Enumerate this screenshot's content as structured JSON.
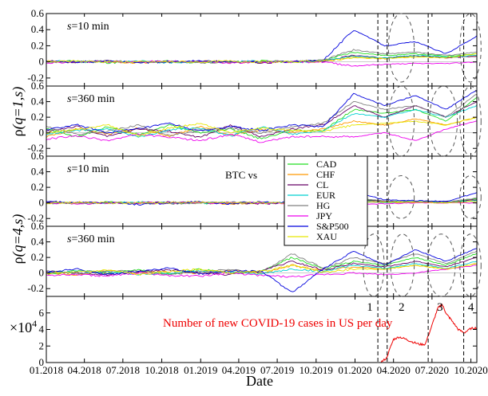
{
  "chart_data": {
    "type": "line",
    "x_axis": {
      "label": "Date",
      "range": [
        "2018-01-01",
        "2020-10-15"
      ],
      "tick_dates": [
        "2018-01-01",
        "2018-04-01",
        "2018-07-01",
        "2018-10-01",
        "2019-01-01",
        "2019-04-01",
        "2019-07-01",
        "2019-10-01",
        "2020-01-01",
        "2020-04-01",
        "2020-07-01",
        "2020-10-01"
      ],
      "tick_labels": [
        "01.2018",
        "04.2018",
        "07.2018",
        "10.2018",
        "01.2019",
        "04.2019",
        "07.2019",
        "10.2019",
        "01.2020",
        "04.2020",
        "07.2020",
        "10.2020"
      ]
    },
    "y_labels": {
      "q1": {
        "rho": "ρ",
        "args": "(q=1,s)"
      },
      "q4": {
        "rho": "ρ",
        "args": "(q=4,s)"
      },
      "covid_prefix": "×10"
    },
    "legend": {
      "title": "BTC vs",
      "position": "center",
      "entries": [
        {
          "label": "CAD",
          "color": "#22dd22"
        },
        {
          "label": "CHF",
          "color": "#ff9900"
        },
        {
          "label": "CL",
          "color": "#660066"
        },
        {
          "label": "EUR",
          "color": "#00d0d0"
        },
        {
          "label": "HG",
          "color": "#808080"
        },
        {
          "label": "JPY",
          "color": "#ee00ee"
        },
        {
          "label": "S&P500",
          "color": "#0000dd"
        },
        {
          "label": "XAU",
          "color": "#e6e600"
        }
      ]
    },
    "panels": [
      {
        "id": "q1-s10",
        "label_s": "s",
        "label_rest": "=10 min",
        "ylim": [
          -0.3,
          0.6
        ],
        "yticks": [
          -0.2,
          0,
          0.2,
          0.4,
          0.6
        ],
        "tick_labels": [
          "-0.2",
          "0",
          "0.2",
          "0.4",
          "0.6"
        ],
        "series_values": {
          "CAD": [
            0.0,
            0.01,
            -0.01,
            0.0,
            0.01,
            -0.01,
            0.0,
            0.01,
            0.0,
            0.02,
            0.12,
            0.08,
            0.1,
            0.07,
            0.1
          ],
          "CHF": [
            0.01,
            0.0,
            0.0,
            -0.01,
            0.0,
            0.01,
            -0.01,
            0.0,
            0.0,
            0.01,
            0.06,
            0.04,
            0.07,
            0.05,
            0.08
          ],
          "CL": [
            0.0,
            -0.01,
            0.01,
            0.0,
            0.0,
            0.0,
            0.01,
            -0.01,
            0.0,
            0.01,
            0.08,
            0.05,
            0.08,
            0.05,
            0.07
          ],
          "EUR": [
            0.01,
            0.0,
            0.0,
            0.01,
            -0.01,
            0.0,
            0.0,
            0.01,
            0.0,
            0.01,
            0.07,
            0.05,
            0.08,
            0.06,
            0.08
          ],
          "HG": [
            0.0,
            0.0,
            0.01,
            0.0,
            0.0,
            -0.01,
            0.0,
            0.0,
            0.01,
            0.02,
            0.15,
            0.1,
            0.12,
            0.08,
            0.12
          ],
          "JPY": [
            -0.01,
            0.0,
            0.0,
            0.0,
            0.01,
            0.0,
            -0.01,
            0.0,
            0.0,
            0.0,
            -0.05,
            -0.03,
            -0.02,
            -0.02,
            0.0
          ],
          "S&P500": [
            0.01,
            0.0,
            0.01,
            -0.01,
            0.0,
            0.01,
            0.0,
            0.0,
            0.0,
            0.02,
            0.4,
            0.2,
            0.25,
            0.1,
            0.32
          ],
          "XAU": [
            0.0,
            0.01,
            0.0,
            0.0,
            0.0,
            0.0,
            0.01,
            0.0,
            0.0,
            0.01,
            0.05,
            0.04,
            0.06,
            0.05,
            0.1
          ]
        }
      },
      {
        "id": "q1-s360",
        "label_s": "s",
        "label_rest": "=360 min",
        "ylim": [
          -0.3,
          0.6
        ],
        "yticks": [
          -0.2,
          0,
          0.2,
          0.4,
          0.6
        ],
        "tick_labels": [
          "-0.2",
          "0",
          "0.2",
          "0.4",
          "0.6"
        ],
        "series_values": {
          "CAD": [
            0.05,
            -0.05,
            0.08,
            -0.02,
            0.1,
            0.0,
            0.05,
            -0.08,
            0.03,
            0.02,
            0.3,
            0.25,
            0.3,
            0.15,
            0.45
          ],
          "CHF": [
            -0.05,
            0.05,
            -0.02,
            0.06,
            -0.05,
            0.08,
            -0.03,
            0.04,
            0.0,
            0.05,
            0.15,
            0.1,
            0.18,
            0.1,
            0.2
          ],
          "CL": [
            0.02,
            0.08,
            -0.05,
            0.05,
            0.02,
            -0.06,
            0.1,
            -0.05,
            0.05,
            0.1,
            0.35,
            0.2,
            0.35,
            0.2,
            0.4
          ],
          "EUR": [
            -0.02,
            0.03,
            0.05,
            -0.06,
            0.04,
            0.06,
            -0.04,
            0.08,
            -0.02,
            0.03,
            0.25,
            0.2,
            0.3,
            0.2,
            0.35
          ],
          "HG": [
            0.08,
            -0.02,
            0.02,
            0.1,
            -0.04,
            0.03,
            0.06,
            0.0,
            0.08,
            0.12,
            0.4,
            0.3,
            0.35,
            0.2,
            0.5
          ],
          "JPY": [
            -0.08,
            -0.04,
            -0.1,
            -0.02,
            -0.06,
            -0.1,
            -0.02,
            -0.12,
            -0.05,
            -0.05,
            -0.05,
            0.0,
            -0.1,
            0.05,
            0.15
          ],
          "S&P500": [
            0.04,
            0.1,
            0.0,
            0.05,
            0.12,
            0.02,
            0.08,
            0.03,
            0.1,
            0.08,
            0.5,
            0.35,
            0.48,
            0.3,
            0.55
          ],
          "XAU": [
            0.0,
            0.04,
            0.1,
            -0.04,
            0.06,
            0.12,
            0.0,
            0.06,
            0.03,
            0.02,
            0.1,
            0.12,
            0.15,
            0.1,
            0.2
          ]
        }
      },
      {
        "id": "q4-s10",
        "label_s": "s",
        "label_rest": "=10 min",
        "ylim": [
          -0.3,
          0.6
        ],
        "yticks": [
          -0.2,
          0,
          0.2,
          0.4,
          0.6
        ],
        "tick_labels": [
          "-0.2",
          "0",
          "0.2",
          "0.4",
          "0.6"
        ],
        "series_values": {
          "CAD": [
            0.0,
            0.0,
            0.01,
            0.0,
            0.0,
            -0.01,
            0.0,
            0.0,
            0.0,
            0.0,
            0.06,
            0.02,
            0.02,
            0.01,
            0.05
          ],
          "CHF": [
            0.0,
            0.01,
            0.0,
            0.0,
            0.0,
            0.0,
            -0.01,
            0.0,
            0.0,
            0.0,
            0.03,
            0.01,
            0.01,
            0.0,
            0.03
          ],
          "CL": [
            0.01,
            0.0,
            0.0,
            0.0,
            0.01,
            0.0,
            0.0,
            -0.01,
            0.0,
            0.0,
            0.04,
            0.02,
            0.01,
            0.01,
            0.04
          ],
          "EUR": [
            0.0,
            0.0,
            0.0,
            0.01,
            0.0,
            0.0,
            0.0,
            0.0,
            0.01,
            0.0,
            0.03,
            0.01,
            0.02,
            0.01,
            0.03
          ],
          "HG": [
            0.0,
            0.0,
            0.0,
            0.0,
            -0.01,
            0.0,
            0.01,
            0.0,
            0.0,
            0.01,
            0.07,
            0.02,
            0.02,
            0.01,
            0.06
          ],
          "JPY": [
            0.0,
            -0.01,
            0.0,
            0.0,
            0.0,
            0.0,
            0.0,
            0.0,
            -0.01,
            0.0,
            -0.02,
            -0.01,
            0.0,
            0.0,
            0.0
          ],
          "S&P500": [
            0.02,
            0.0,
            0.01,
            -0.02,
            0.0,
            0.01,
            -0.01,
            0.01,
            0.0,
            0.01,
            0.14,
            0.04,
            0.03,
            0.02,
            0.13
          ],
          "XAU": [
            0.0,
            0.0,
            0.0,
            0.0,
            0.0,
            0.01,
            0.0,
            0.0,
            0.0,
            0.0,
            0.02,
            0.01,
            0.01,
            0.0,
            0.02
          ]
        }
      },
      {
        "id": "q4-s360",
        "label_s": "s",
        "label_rest": "=360 min",
        "ylim": [
          -0.3,
          0.6
        ],
        "yticks": [
          -0.2,
          0,
          0.2,
          0.4,
          0.6
        ],
        "tick_labels": [
          "-0.2",
          "0",
          "0.2",
          "0.4",
          "0.6"
        ],
        "series_values": {
          "CAD": [
            -0.02,
            0.03,
            0.0,
            0.04,
            -0.02,
            0.05,
            0.0,
            0.02,
            0.2,
            0.05,
            0.15,
            0.1,
            0.2,
            0.1,
            0.25
          ],
          "CHF": [
            0.0,
            -0.02,
            0.03,
            0.0,
            0.02,
            -0.01,
            0.03,
            0.0,
            0.1,
            0.03,
            0.08,
            0.05,
            0.1,
            0.05,
            0.12
          ],
          "CL": [
            0.02,
            0.0,
            -0.02,
            0.02,
            0.04,
            0.0,
            -0.02,
            0.03,
            0.15,
            0.04,
            0.12,
            0.08,
            0.15,
            0.08,
            0.2
          ],
          "EUR": [
            0.0,
            0.02,
            0.02,
            -0.02,
            0.0,
            0.03,
            0.01,
            -0.01,
            0.05,
            0.02,
            0.1,
            0.06,
            0.12,
            0.06,
            0.15
          ],
          "HG": [
            0.03,
            -0.01,
            0.02,
            0.03,
            -0.02,
            0.02,
            0.04,
            0.01,
            0.25,
            0.06,
            0.2,
            0.12,
            0.25,
            0.12,
            0.28
          ],
          "JPY": [
            -0.03,
            -0.02,
            -0.04,
            0.0,
            -0.03,
            -0.04,
            0.0,
            -0.03,
            -0.05,
            -0.02,
            0.0,
            -0.02,
            0.0,
            0.05,
            0.1
          ],
          "S&P500": [
            0.01,
            0.05,
            -0.02,
            0.02,
            0.06,
            -0.01,
            0.03,
            0.02,
            -0.25,
            0.05,
            0.28,
            0.1,
            0.3,
            0.15,
            0.32
          ],
          "XAU": [
            0.0,
            0.01,
            0.04,
            -0.02,
            0.02,
            0.05,
            0.0,
            0.02,
            0.1,
            0.01,
            0.05,
            0.05,
            0.1,
            0.05,
            0.12
          ]
        }
      }
    ],
    "covid": {
      "label": "Number of new COVID-19 cases in US per day",
      "exponent": "4",
      "ylim": [
        0,
        8
      ],
      "yticks": [
        0,
        2,
        4,
        6
      ],
      "tick_labels": [
        "0",
        "2",
        "4",
        "6"
      ],
      "color": "#ee0000",
      "dates": [
        "2020-03-01",
        "2020-03-15",
        "2020-04-01",
        "2020-04-15",
        "2020-05-01",
        "2020-05-15",
        "2020-06-01",
        "2020-06-15",
        "2020-07-01",
        "2020-07-15",
        "2020-07-25",
        "2020-08-05",
        "2020-08-15",
        "2020-09-01",
        "2020-09-15",
        "2020-10-01",
        "2020-10-15"
      ],
      "values": [
        0.0,
        0.5,
        2.8,
        3.1,
        2.8,
        2.5,
        2.2,
        2.2,
        4.5,
        6.6,
        7.0,
        5.8,
        5.2,
        4.0,
        3.6,
        4.1,
        4.2
      ]
    },
    "periods": {
      "boundaries": [
        "2020-02-24",
        "2020-03-17",
        "2020-06-22",
        "2020-09-14"
      ],
      "labels": [
        "1",
        "2",
        "3",
        "4"
      ],
      "label_dates": [
        "2020-02-05",
        "2020-04-20",
        "2020-07-20",
        "2020-10-01"
      ]
    },
    "highlights": [
      {
        "panel": 0,
        "dates": [
          "2020-03-20",
          "2020-05-20"
        ],
        "yrange": [
          -0.25,
          0.6
        ]
      },
      {
        "panel": 0,
        "dates": [
          "2020-09-05",
          "2020-10-25"
        ],
        "yrange": [
          -0.25,
          0.6
        ]
      },
      {
        "panel": 1,
        "dates": [
          "2020-03-20",
          "2020-05-20"
        ],
        "yrange": [
          -0.3,
          0.6
        ]
      },
      {
        "panel": 1,
        "dates": [
          "2020-06-25",
          "2020-08-30"
        ],
        "yrange": [
          -0.3,
          0.6
        ]
      },
      {
        "panel": 1,
        "dates": [
          "2020-09-05",
          "2020-10-25"
        ],
        "yrange": [
          -0.3,
          0.6
        ]
      },
      {
        "panel": 2,
        "dates": [
          "2020-03-20",
          "2020-05-20"
        ],
        "yrange": [
          -0.2,
          0.35
        ]
      },
      {
        "panel": 2,
        "dates": [
          "2020-09-05",
          "2020-10-25"
        ],
        "yrange": [
          -0.2,
          0.35
        ]
      },
      {
        "panel": 3,
        "dates": [
          "2020-01-20",
          "2020-03-10"
        ],
        "yrange": [
          -0.3,
          0.5
        ]
      },
      {
        "panel": 3,
        "dates": [
          "2020-03-25",
          "2020-05-20"
        ],
        "yrange": [
          -0.3,
          0.5
        ]
      },
      {
        "panel": 3,
        "dates": [
          "2020-06-20",
          "2020-08-25"
        ],
        "yrange": [
          -0.3,
          0.5
        ]
      },
      {
        "panel": 3,
        "dates": [
          "2020-09-05",
          "2020-10-25"
        ],
        "yrange": [
          -0.3,
          0.5
        ]
      }
    ]
  }
}
